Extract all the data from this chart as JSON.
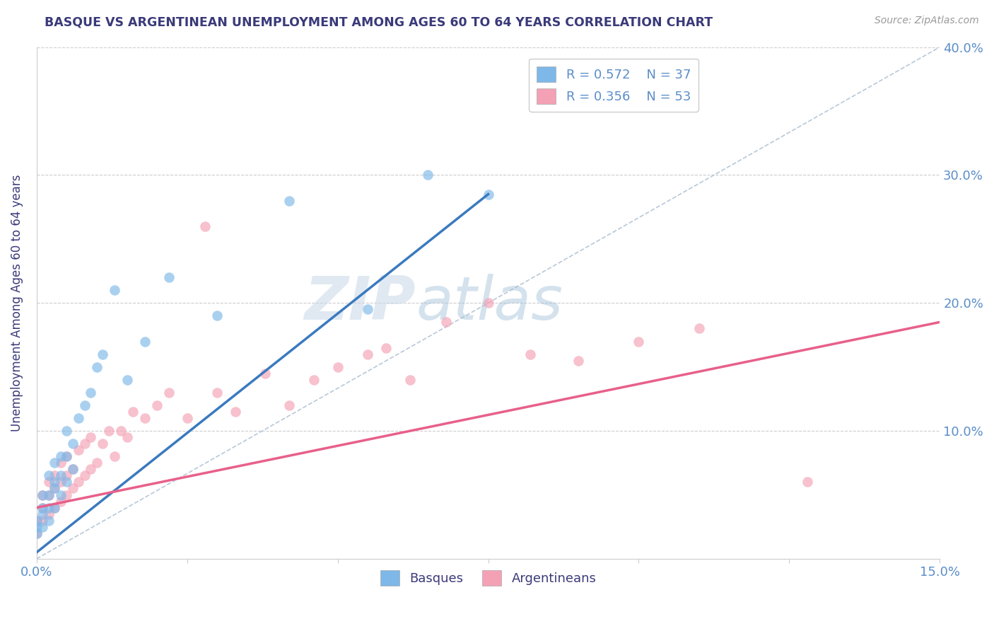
{
  "title": "BASQUE VS ARGENTINEAN UNEMPLOYMENT AMONG AGES 60 TO 64 YEARS CORRELATION CHART",
  "source_text": "Source: ZipAtlas.com",
  "ylabel": "Unemployment Among Ages 60 to 64 years",
  "xlim": [
    0.0,
    0.15
  ],
  "ylim": [
    0.0,
    0.4
  ],
  "legend_r1": "R = 0.572",
  "legend_n1": "N = 37",
  "legend_r2": "R = 0.356",
  "legend_n2": "N = 53",
  "color_blue": "#7db8e8",
  "color_pink": "#f4a0b5",
  "color_blue_line": "#3a7abf",
  "color_pink_line": "#e8608a",
  "color_title": "#3a3a7a",
  "color_axis": "#5b8ec9",
  "watermark_zip": "ZIP",
  "watermark_atlas": "atlas",
  "blue_line_x0": 0.0,
  "blue_line_y0": 0.005,
  "blue_line_x1": 0.075,
  "blue_line_y1": 0.285,
  "pink_line_x0": 0.0,
  "pink_line_y0": 0.04,
  "pink_line_x1": 0.15,
  "pink_line_y1": 0.185,
  "basque_x": [
    0.0,
    0.0,
    0.0,
    0.001,
    0.001,
    0.001,
    0.001,
    0.002,
    0.002,
    0.002,
    0.002,
    0.003,
    0.003,
    0.003,
    0.003,
    0.004,
    0.004,
    0.004,
    0.005,
    0.005,
    0.005,
    0.006,
    0.006,
    0.007,
    0.008,
    0.009,
    0.01,
    0.011,
    0.013,
    0.015,
    0.018,
    0.022,
    0.03,
    0.042,
    0.055,
    0.065,
    0.075
  ],
  "basque_y": [
    0.02,
    0.025,
    0.03,
    0.025,
    0.035,
    0.04,
    0.05,
    0.03,
    0.04,
    0.05,
    0.065,
    0.04,
    0.055,
    0.06,
    0.075,
    0.05,
    0.065,
    0.08,
    0.06,
    0.08,
    0.1,
    0.07,
    0.09,
    0.11,
    0.12,
    0.13,
    0.15,
    0.16,
    0.21,
    0.14,
    0.17,
    0.22,
    0.19,
    0.28,
    0.195,
    0.3,
    0.285
  ],
  "argent_x": [
    0.0,
    0.0,
    0.001,
    0.001,
    0.001,
    0.002,
    0.002,
    0.002,
    0.003,
    0.003,
    0.003,
    0.004,
    0.004,
    0.004,
    0.005,
    0.005,
    0.005,
    0.006,
    0.006,
    0.007,
    0.007,
    0.008,
    0.008,
    0.009,
    0.009,
    0.01,
    0.011,
    0.012,
    0.013,
    0.014,
    0.015,
    0.016,
    0.018,
    0.02,
    0.022,
    0.025,
    0.028,
    0.03,
    0.033,
    0.038,
    0.042,
    0.046,
    0.05,
    0.055,
    0.058,
    0.062,
    0.068,
    0.075,
    0.082,
    0.09,
    0.1,
    0.11,
    0.128
  ],
  "argent_y": [
    0.02,
    0.03,
    0.03,
    0.04,
    0.05,
    0.035,
    0.05,
    0.06,
    0.04,
    0.055,
    0.065,
    0.045,
    0.06,
    0.075,
    0.05,
    0.065,
    0.08,
    0.055,
    0.07,
    0.06,
    0.085,
    0.065,
    0.09,
    0.07,
    0.095,
    0.075,
    0.09,
    0.1,
    0.08,
    0.1,
    0.095,
    0.115,
    0.11,
    0.12,
    0.13,
    0.11,
    0.26,
    0.13,
    0.115,
    0.145,
    0.12,
    0.14,
    0.15,
    0.16,
    0.165,
    0.14,
    0.185,
    0.2,
    0.16,
    0.155,
    0.17,
    0.18,
    0.06
  ]
}
